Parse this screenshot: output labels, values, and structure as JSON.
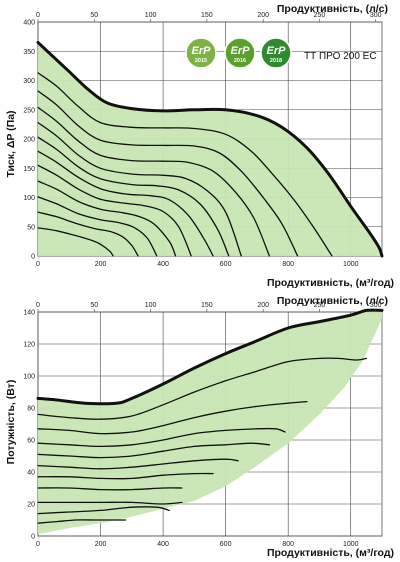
{
  "model_label": "ТТ ПРО 200 ЕС",
  "badges": [
    {
      "text": "ErP",
      "year": "2015",
      "color": "#7cb342"
    },
    {
      "text": "ErP",
      "year": "2016",
      "color": "#5aa02c"
    },
    {
      "text": "ErP",
      "year": "2018",
      "color": "#2e8b2e"
    }
  ],
  "chart_data": [
    {
      "type": "line",
      "title": "",
      "ylabel": "Тиск, ΔP (Па)",
      "xlabel": "Продуктивність, (м³/год)",
      "x2label": "Продуктивність, (л/с)",
      "xlim": [
        0,
        1100
      ],
      "ylim": [
        0,
        400
      ],
      "x_ticks": [
        0,
        200,
        400,
        600,
        800,
        1000
      ],
      "y_ticks": [
        0,
        50,
        100,
        150,
        200,
        250,
        300,
        350,
        400
      ],
      "x2_ticks": [
        0,
        50,
        100,
        150,
        200,
        250,
        300
      ],
      "grid": true,
      "fill_color": "#c8e6b4",
      "envelope": [
        [
          0,
          365
        ],
        [
          40,
          345
        ],
        [
          100,
          315
        ],
        [
          160,
          285
        ],
        [
          220,
          262
        ],
        [
          300,
          252
        ],
        [
          400,
          248
        ],
        [
          500,
          250
        ],
        [
          600,
          250
        ],
        [
          700,
          240
        ],
        [
          780,
          220
        ],
        [
          860,
          185
        ],
        [
          930,
          140
        ],
        [
          1000,
          85
        ],
        [
          1060,
          40
        ],
        [
          1090,
          15
        ],
        [
          1100,
          0
        ]
      ],
      "series": [
        {
          "values": [
            [
              0,
              313
            ],
            [
              60,
              290
            ],
            [
              130,
              255
            ],
            [
              200,
              228
            ],
            [
              300,
              220
            ],
            [
              400,
              219
            ],
            [
              500,
              218
            ],
            [
              600,
              208
            ],
            [
              680,
              180
            ],
            [
              750,
              140
            ],
            [
              820,
              95
            ],
            [
              880,
              50
            ],
            [
              940,
              0
            ]
          ]
        },
        {
          "values": [
            [
              0,
              282
            ],
            [
              60,
              258
            ],
            [
              130,
              222
            ],
            [
              200,
              198
            ],
            [
              300,
              190
            ],
            [
              400,
              189
            ],
            [
              500,
              188
            ],
            [
              580,
              176
            ],
            [
              650,
              145
            ],
            [
              720,
              100
            ],
            [
              780,
              55
            ],
            [
              830,
              0
            ]
          ]
        },
        {
          "values": [
            [
              0,
              254
            ],
            [
              60,
              230
            ],
            [
              130,
              196
            ],
            [
              200,
              172
            ],
            [
              300,
              163
            ],
            [
              400,
              162
            ],
            [
              480,
              160
            ],
            [
              560,
              145
            ],
            [
              630,
              110
            ],
            [
              690,
              65
            ],
            [
              740,
              0
            ]
          ]
        },
        {
          "values": [
            [
              0,
              228
            ],
            [
              60,
              205
            ],
            [
              130,
              172
            ],
            [
              200,
              150
            ],
            [
              300,
              140
            ],
            [
              400,
              138
            ],
            [
              470,
              133
            ],
            [
              540,
              112
            ],
            [
              600,
              75
            ],
            [
              650,
              0
            ]
          ]
        },
        {
          "values": [
            [
              0,
              203
            ],
            [
              60,
              182
            ],
            [
              130,
              152
            ],
            [
              200,
              132
            ],
            [
              300,
              122
            ],
            [
              380,
              120
            ],
            [
              450,
              113
            ],
            [
              520,
              88
            ],
            [
              575,
              45
            ],
            [
              610,
              0
            ]
          ]
        },
        {
          "values": [
            [
              0,
              179
            ],
            [
              60,
              160
            ],
            [
              130,
              134
            ],
            [
              200,
              115
            ],
            [
              280,
              106
            ],
            [
              360,
              103
            ],
            [
              420,
              96
            ],
            [
              480,
              70
            ],
            [
              530,
              30
            ],
            [
              560,
              0
            ]
          ]
        },
        {
          "values": [
            [
              0,
              155
            ],
            [
              60,
              138
            ],
            [
              130,
              114
            ],
            [
              200,
              97
            ],
            [
              280,
              90
            ],
            [
              340,
              86
            ],
            [
              400,
              76
            ],
            [
              450,
              50
            ],
            [
              490,
              0
            ]
          ]
        },
        {
          "values": [
            [
              0,
              128
            ],
            [
              60,
              114
            ],
            [
              130,
              93
            ],
            [
              200,
              80
            ],
            [
              270,
              74
            ],
            [
              320,
              68
            ],
            [
              370,
              55
            ],
            [
              420,
              25
            ],
            [
              440,
              0
            ]
          ]
        },
        {
          "values": [
            [
              0,
              101
            ],
            [
              60,
              89
            ],
            [
              130,
              72
            ],
            [
              200,
              62
            ],
            [
              260,
              57
            ],
            [
              310,
              48
            ],
            [
              350,
              30
            ],
            [
              380,
              0
            ]
          ]
        },
        {
          "values": [
            [
              0,
              75
            ],
            [
              60,
              67
            ],
            [
              120,
              56
            ],
            [
              180,
              47
            ],
            [
              230,
              42
            ],
            [
              270,
              33
            ],
            [
              300,
              18
            ],
            [
              320,
              0
            ]
          ]
        },
        {
          "values": [
            [
              0,
              48
            ],
            [
              60,
              43
            ],
            [
              120,
              35
            ],
            [
              170,
              27
            ],
            [
              200,
              20
            ],
            [
              230,
              8
            ],
            [
              240,
              0
            ]
          ]
        }
      ]
    },
    {
      "type": "line",
      "title": "",
      "ylabel": "Потужність, (Вт)",
      "xlabel": "Продуктивність, (м³/год)",
      "x2label": "Продуктивність, (л/с)",
      "xlim": [
        0,
        1100
      ],
      "ylim": [
        0,
        140
      ],
      "x_ticks": [
        0,
        200,
        400,
        600,
        800,
        1000
      ],
      "y_ticks": [
        0,
        20,
        40,
        60,
        80,
        100,
        120,
        140
      ],
      "x2_ticks": [
        0,
        50,
        100,
        150,
        200,
        250,
        300
      ],
      "grid": true,
      "fill_color": "#c8e6b4",
      "envelope": [
        [
          0,
          86
        ],
        [
          60,
          85
        ],
        [
          150,
          83
        ],
        [
          250,
          83
        ],
        [
          300,
          86
        ],
        [
          400,
          95
        ],
        [
          500,
          105
        ],
        [
          600,
          114
        ],
        [
          700,
          122
        ],
        [
          800,
          130
        ],
        [
          900,
          134
        ],
        [
          1000,
          138
        ],
        [
          1050,
          141
        ],
        [
          1100,
          141
        ]
      ],
      "lower_boundary": [
        [
          1100,
          136
        ],
        [
          1040,
          110
        ],
        [
          980,
          93
        ],
        [
          900,
          76
        ],
        [
          800,
          58
        ],
        [
          700,
          44
        ],
        [
          600,
          31
        ],
        [
          500,
          22
        ],
        [
          400,
          17
        ],
        [
          300,
          12
        ],
        [
          200,
          8
        ],
        [
          100,
          5
        ],
        [
          0,
          1
        ]
      ],
      "series": [
        {
          "values": [
            [
              0,
              76
            ],
            [
              100,
              74
            ],
            [
              200,
              73
            ],
            [
              300,
              75
            ],
            [
              400,
              82
            ],
            [
              500,
              90
            ],
            [
              600,
              97
            ],
            [
              700,
              103
            ],
            [
              800,
              109
            ],
            [
              900,
              111
            ],
            [
              960,
              111
            ],
            [
              1020,
              110
            ],
            [
              1050,
              111
            ]
          ]
        },
        {
          "values": [
            [
              0,
              67
            ],
            [
              100,
              66
            ],
            [
              200,
              64
            ],
            [
              300,
              65
            ],
            [
              400,
              69
            ],
            [
              500,
              74
            ],
            [
              600,
              78
            ],
            [
              700,
              81
            ],
            [
              800,
              83
            ],
            [
              860,
              84
            ]
          ]
        },
        {
          "values": [
            [
              0,
              58
            ],
            [
              100,
              57
            ],
            [
              200,
              56
            ],
            [
              300,
              57
            ],
            [
              400,
              60
            ],
            [
              500,
              64
            ],
            [
              600,
              66
            ],
            [
              700,
              67
            ],
            [
              760,
              67
            ],
            [
              790,
              65
            ]
          ]
        },
        {
          "values": [
            [
              0,
              51
            ],
            [
              100,
              50
            ],
            [
              200,
              49
            ],
            [
              300,
              50
            ],
            [
              400,
              53
            ],
            [
              500,
              56
            ],
            [
              600,
              57
            ],
            [
              680,
              58
            ],
            [
              740,
              57
            ]
          ]
        },
        {
          "values": [
            [
              0,
              44
            ],
            [
              100,
              43
            ],
            [
              200,
              42
            ],
            [
              300,
              43
            ],
            [
              400,
              45
            ],
            [
              500,
              47
            ],
            [
              600,
              48
            ],
            [
              640,
              47
            ]
          ]
        },
        {
          "values": [
            [
              0,
              37
            ],
            [
              100,
              37
            ],
            [
              200,
              36
            ],
            [
              300,
              36
            ],
            [
              400,
              38
            ],
            [
              500,
              39
            ],
            [
              560,
              39
            ]
          ]
        },
        {
          "values": [
            [
              0,
              30
            ],
            [
              100,
              30
            ],
            [
              200,
              29
            ],
            [
              300,
              29
            ],
            [
              400,
              30
            ],
            [
              460,
              30
            ]
          ]
        },
        {
          "values": [
            [
              0,
              21
            ],
            [
              100,
              21
            ],
            [
              200,
              21
            ],
            [
              300,
              21
            ],
            [
              400,
              20
            ],
            [
              460,
              21
            ]
          ]
        },
        {
          "values": [
            [
              0,
              14
            ],
            [
              100,
              15
            ],
            [
              200,
              16
            ],
            [
              300,
              18
            ],
            [
              380,
              18
            ],
            [
              420,
              16
            ]
          ]
        },
        {
          "values": [
            [
              0,
              8
            ],
            [
              60,
              9
            ],
            [
              120,
              10
            ],
            [
              180,
              10
            ],
            [
              240,
              10
            ],
            [
              280,
              10
            ]
          ]
        }
      ]
    }
  ]
}
